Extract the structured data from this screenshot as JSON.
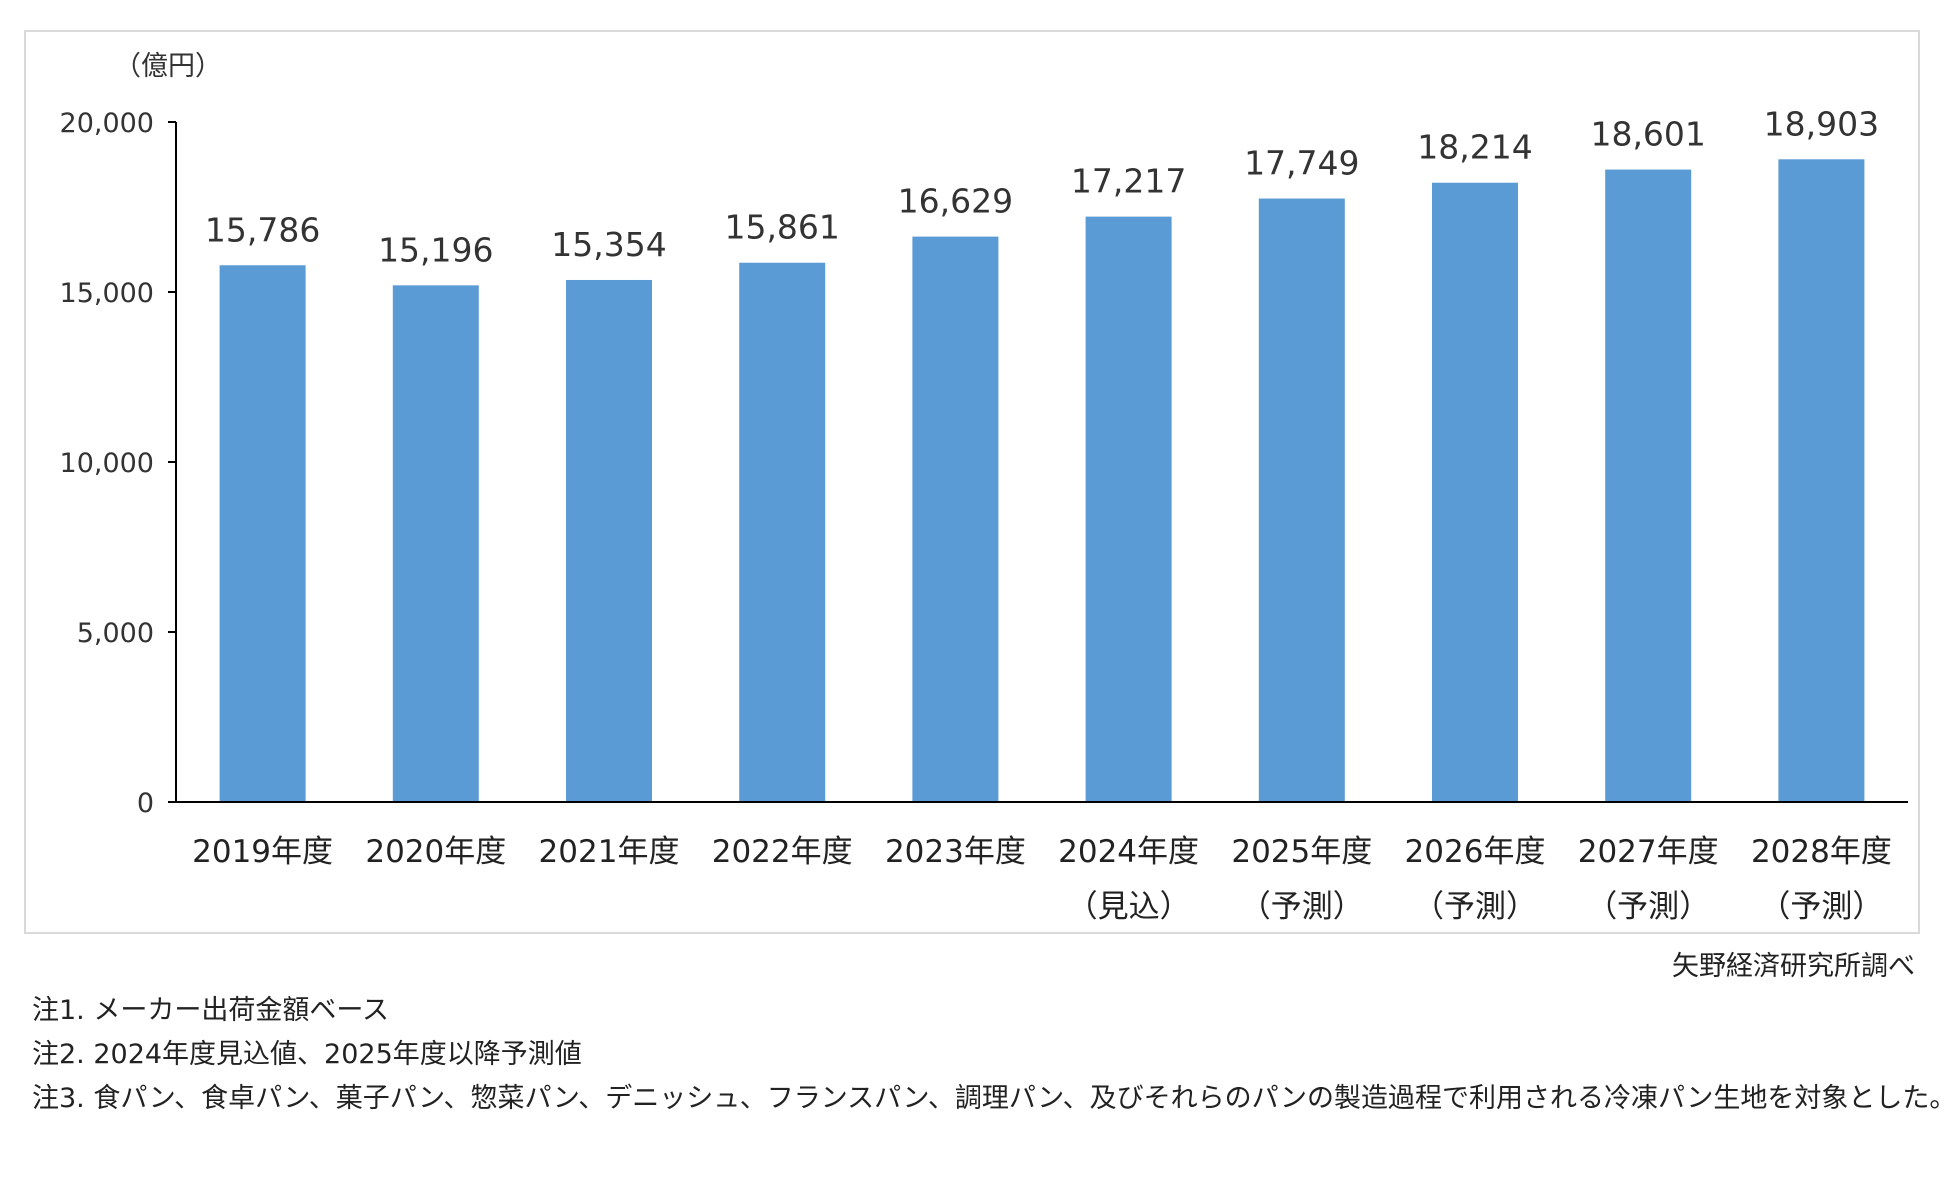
{
  "chart_data": {
    "type": "bar",
    "unit_label": "（億円）",
    "categories": [
      [
        "2019年度",
        ""
      ],
      [
        "2020年度",
        ""
      ],
      [
        "2021年度",
        ""
      ],
      [
        "2022年度",
        ""
      ],
      [
        "2023年度",
        ""
      ],
      [
        "2024年度",
        "（見込）"
      ],
      [
        "2025年度",
        "（予測）"
      ],
      [
        "2026年度",
        "（予測）"
      ],
      [
        "2027年度",
        "（予測）"
      ],
      [
        "2028年度",
        "（予測）"
      ]
    ],
    "values": [
      15786,
      15196,
      15354,
      15861,
      16629,
      17217,
      17749,
      18214,
      18601,
      18903
    ],
    "data_labels": [
      "15,786",
      "15,196",
      "15,354",
      "15,861",
      "16,629",
      "17,217",
      "17,749",
      "18,214",
      "18,601",
      "18,903"
    ],
    "ylim": [
      0,
      20000
    ],
    "yticks": [
      0,
      5000,
      10000,
      15000,
      20000
    ],
    "ytick_labels": [
      "0",
      "5,000",
      "10,000",
      "15,000",
      "20,000"
    ],
    "bar_color": "#5b9bd5",
    "axis_color": "#000000",
    "grid": false
  },
  "source": "矢野経済研究所調べ",
  "notes": [
    "注1.  メーカー出荷金額ベース",
    "注2.  2024年度見込値、2025年度以降予測値",
    "注3.  食パン、食卓パン、菓子パン、惣菜パン、デニッシュ、フランスパン、調理パン、及びそれらのパンの製造過程で利用される冷凍パン生地を対象とした。"
  ]
}
